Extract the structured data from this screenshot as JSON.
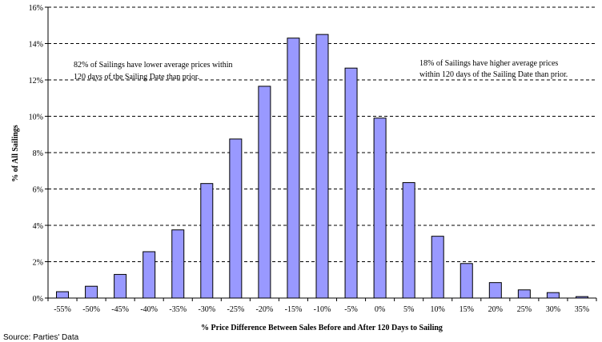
{
  "chart_data": {
    "type": "bar",
    "categories": [
      "-55%",
      "-50%",
      "-45%",
      "-40%",
      "-35%",
      "-30%",
      "-25%",
      "-20%",
      "-15%",
      "-10%",
      "-5%",
      "0%",
      "5%",
      "10%",
      "15%",
      "20%",
      "25%",
      "30%",
      "35%"
    ],
    "values": [
      0.35,
      0.65,
      1.3,
      2.55,
      3.75,
      6.3,
      8.75,
      11.65,
      14.3,
      14.5,
      12.65,
      9.9,
      6.35,
      3.4,
      1.9,
      0.85,
      0.45,
      0.3,
      0.08
    ],
    "xlabel": "% Price Difference Between Sales Before and After 120 Days to Sailing",
    "ylabel": "% of All Sailings",
    "ylim": [
      0,
      16
    ],
    "yticks": [
      0,
      2,
      4,
      6,
      8,
      10,
      12,
      14,
      16
    ],
    "ytick_labels": [
      "0%",
      "2%",
      "4%",
      "6%",
      "8%",
      "10%",
      "12%",
      "14%",
      "16%"
    ],
    "grid": "horizontal dashed",
    "annotations": {
      "left": [
        "82% of Sailings have lower average prices within",
        "120 days of the Sailing Date than prior."
      ],
      "right": [
        "18% of Sailings have higher average prices",
        "within 120 days of the Sailing Date than prior."
      ]
    },
    "source": "Source: Parties' Data"
  },
  "colors": {
    "bar_fill": "#9999ff",
    "bar_stroke": "#000000",
    "grid": "#000000",
    "background": "#ffffff"
  }
}
